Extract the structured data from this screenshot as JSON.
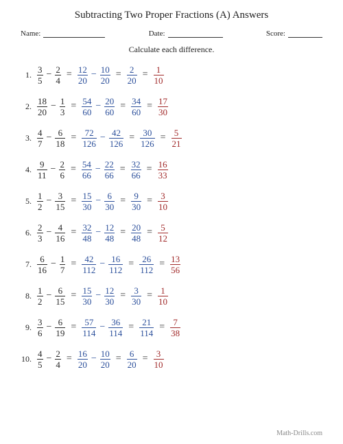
{
  "title": "Subtracting Two Proper Fractions (A) Answers",
  "labels": {
    "name": "Name:",
    "date": "Date:",
    "score": "Score:"
  },
  "underline_widths": {
    "name": 90,
    "date": 80,
    "score": 50
  },
  "instruction": "Calculate each difference.",
  "footer": "Math-Drills.com",
  "colors": {
    "black": "#2a2a2a",
    "blue": "#2a4e9a",
    "red": "#a02828"
  },
  "problems": [
    {
      "a": {
        "n": "3",
        "d": "5"
      },
      "b": {
        "n": "2",
        "d": "4"
      },
      "c1": {
        "n": "12",
        "d": "20"
      },
      "c2": {
        "n": "10",
        "d": "20"
      },
      "diff": {
        "n": "2",
        "d": "20"
      },
      "simp": {
        "n": "1",
        "d": "10"
      }
    },
    {
      "a": {
        "n": "18",
        "d": "20"
      },
      "b": {
        "n": "1",
        "d": "3"
      },
      "c1": {
        "n": "54",
        "d": "60"
      },
      "c2": {
        "n": "20",
        "d": "60"
      },
      "diff": {
        "n": "34",
        "d": "60"
      },
      "simp": {
        "n": "17",
        "d": "30"
      }
    },
    {
      "a": {
        "n": "4",
        "d": "7"
      },
      "b": {
        "n": "6",
        "d": "18"
      },
      "c1": {
        "n": "72",
        "d": "126"
      },
      "c2": {
        "n": "42",
        "d": "126"
      },
      "diff": {
        "n": "30",
        "d": "126"
      },
      "simp": {
        "n": "5",
        "d": "21"
      }
    },
    {
      "a": {
        "n": "9",
        "d": "11"
      },
      "b": {
        "n": "2",
        "d": "6"
      },
      "c1": {
        "n": "54",
        "d": "66"
      },
      "c2": {
        "n": "22",
        "d": "66"
      },
      "diff": {
        "n": "32",
        "d": "66"
      },
      "simp": {
        "n": "16",
        "d": "33"
      }
    },
    {
      "a": {
        "n": "1",
        "d": "2"
      },
      "b": {
        "n": "3",
        "d": "15"
      },
      "c1": {
        "n": "15",
        "d": "30"
      },
      "c2": {
        "n": "6",
        "d": "30"
      },
      "diff": {
        "n": "9",
        "d": "30"
      },
      "simp": {
        "n": "3",
        "d": "10"
      }
    },
    {
      "a": {
        "n": "2",
        "d": "3"
      },
      "b": {
        "n": "4",
        "d": "16"
      },
      "c1": {
        "n": "32",
        "d": "48"
      },
      "c2": {
        "n": "12",
        "d": "48"
      },
      "diff": {
        "n": "20",
        "d": "48"
      },
      "simp": {
        "n": "5",
        "d": "12"
      }
    },
    {
      "a": {
        "n": "6",
        "d": "16"
      },
      "b": {
        "n": "1",
        "d": "7"
      },
      "c1": {
        "n": "42",
        "d": "112"
      },
      "c2": {
        "n": "16",
        "d": "112"
      },
      "diff": {
        "n": "26",
        "d": "112"
      },
      "simp": {
        "n": "13",
        "d": "56"
      }
    },
    {
      "a": {
        "n": "1",
        "d": "2"
      },
      "b": {
        "n": "6",
        "d": "15"
      },
      "c1": {
        "n": "15",
        "d": "30"
      },
      "c2": {
        "n": "12",
        "d": "30"
      },
      "diff": {
        "n": "3",
        "d": "30"
      },
      "simp": {
        "n": "1",
        "d": "10"
      }
    },
    {
      "a": {
        "n": "3",
        "d": "6"
      },
      "b": {
        "n": "6",
        "d": "19"
      },
      "c1": {
        "n": "57",
        "d": "114"
      },
      "c2": {
        "n": "36",
        "d": "114"
      },
      "diff": {
        "n": "21",
        "d": "114"
      },
      "simp": {
        "n": "7",
        "d": "38"
      }
    },
    {
      "a": {
        "n": "4",
        "d": "5"
      },
      "b": {
        "n": "2",
        "d": "4"
      },
      "c1": {
        "n": "16",
        "d": "20"
      },
      "c2": {
        "n": "10",
        "d": "20"
      },
      "diff": {
        "n": "6",
        "d": "20"
      },
      "simp": {
        "n": "3",
        "d": "10"
      }
    }
  ]
}
